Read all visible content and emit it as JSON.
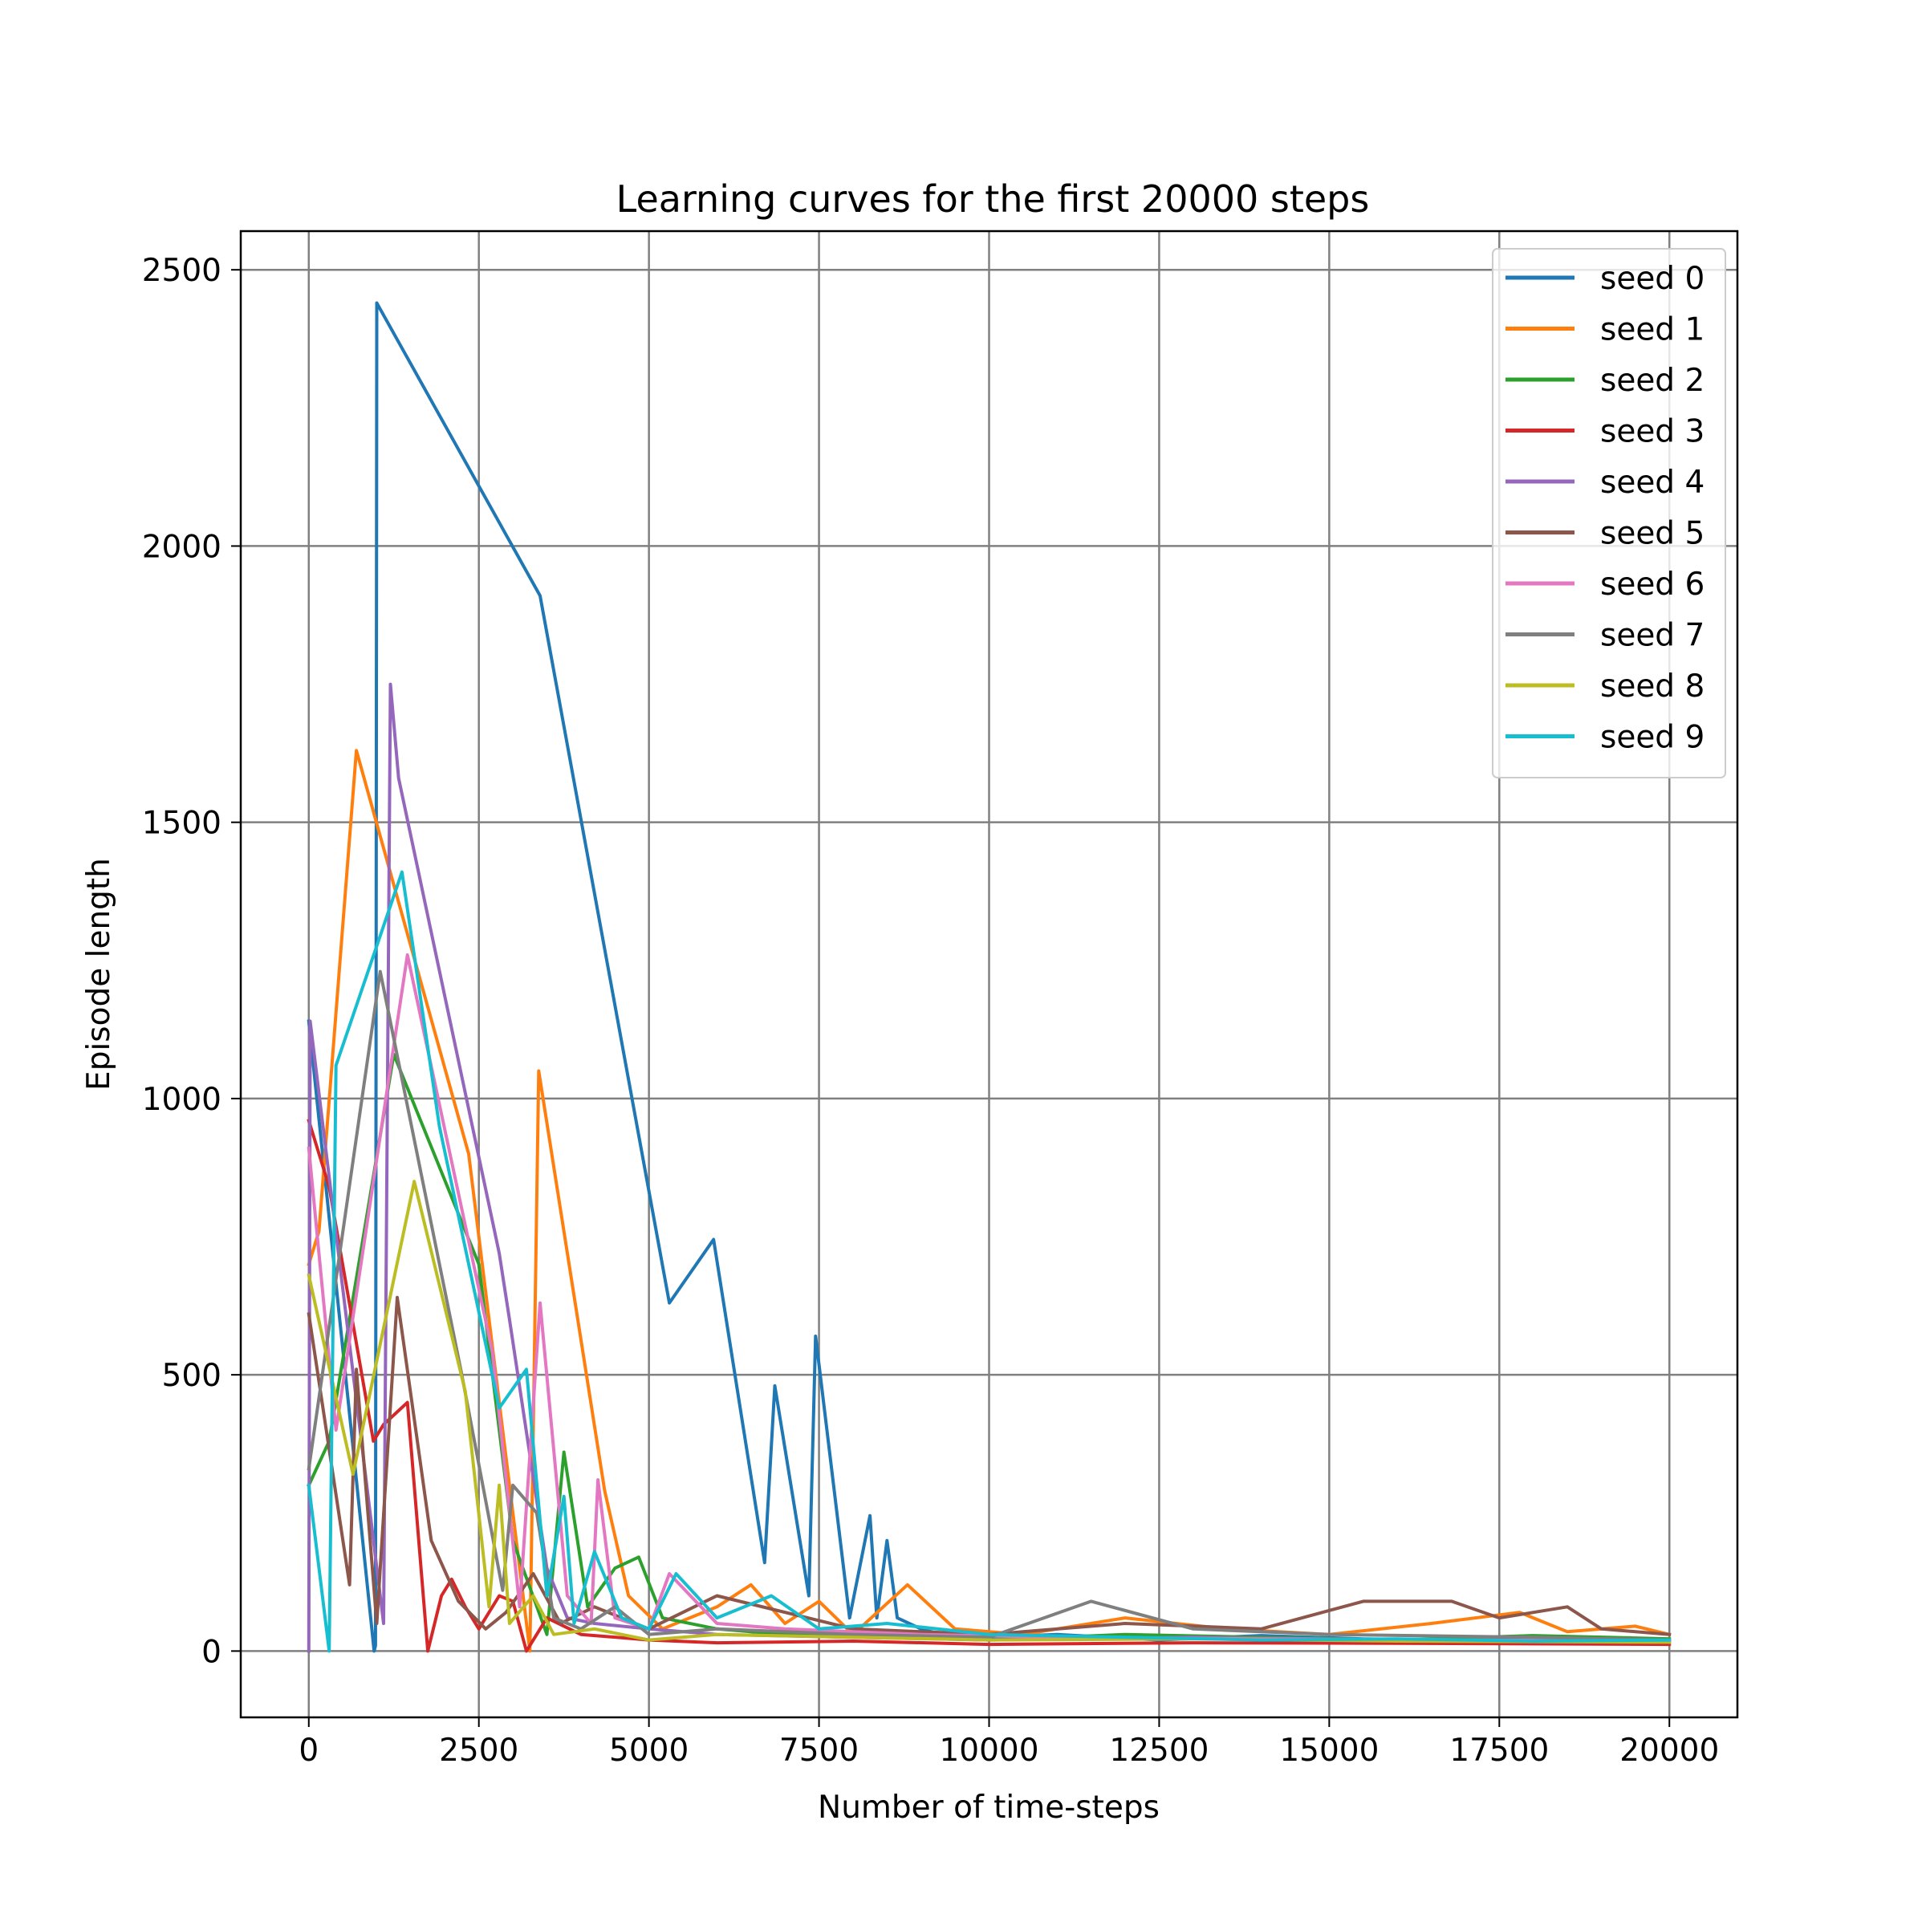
{
  "chart_data": {
    "type": "line",
    "title": "Learning curves for the first 20000 steps",
    "xlabel": "Number of time-steps",
    "ylabel": "Episode length",
    "xlim": [
      -1000,
      21000
    ],
    "ylim": [
      -120,
      2570
    ],
    "xticks": [
      0,
      2500,
      5000,
      7500,
      10000,
      12500,
      15000,
      17500,
      20000
    ],
    "yticks": [
      0,
      500,
      1000,
      1500,
      2000,
      2500
    ],
    "grid": true,
    "legend_position": "top-right",
    "series": [
      {
        "name": "seed 0",
        "color": "#1f77b4",
        "x": [
          0,
          960,
          980,
          1000,
          3400,
          5300,
          5950,
          6700,
          6850,
          7350,
          7450,
          7950,
          8250,
          8350,
          8500,
          8650,
          9000,
          9300,
          10000,
          11000,
          12500,
          14000,
          15500,
          17000,
          18500,
          20000
        ],
        "y": [
          1140,
          0,
          10,
          2440,
          1910,
          630,
          745,
          160,
          480,
          100,
          570,
          60,
          245,
          60,
          200,
          60,
          40,
          30,
          25,
          30,
          20,
          28,
          22,
          20,
          25,
          20
        ]
      },
      {
        "name": "seed 1",
        "color": "#ff7f0e",
        "x": [
          0,
          150,
          700,
          2350,
          3250,
          3380,
          4350,
          4700,
          5200,
          6000,
          6500,
          7000,
          7500,
          8000,
          8800,
          9500,
          10500,
          12000,
          13500,
          15000,
          16500,
          17800,
          18500,
          19500,
          20000
        ],
        "y": [
          700,
          760,
          1630,
          900,
          0,
          1050,
          290,
          100,
          40,
          80,
          120,
          50,
          90,
          30,
          120,
          40,
          30,
          60,
          40,
          30,
          50,
          70,
          35,
          45,
          30
        ]
      },
      {
        "name": "seed 2",
        "color": "#2ca02c",
        "x": [
          0,
          300,
          1250,
          2500,
          3000,
          3500,
          3750,
          4100,
          4500,
          4850,
          5200,
          6000,
          7000,
          8500,
          10000,
          12000,
          14000,
          16000,
          18000,
          20000
        ],
        "y": [
          300,
          380,
          1080,
          700,
          200,
          30,
          360,
          80,
          150,
          170,
          60,
          40,
          30,
          25,
          20,
          30,
          25,
          20,
          28,
          22
        ]
      },
      {
        "name": "seed 3",
        "color": "#d62728",
        "x": [
          0,
          300,
          950,
          1100,
          1450,
          1750,
          1950,
          2100,
          2300,
          2500,
          2800,
          3000,
          3200,
          3500,
          4000,
          5000,
          6000,
          8000,
          10000,
          13000,
          16000,
          20000
        ],
        "y": [
          960,
          840,
          380,
          410,
          450,
          0,
          100,
          130,
          80,
          40,
          100,
          90,
          0,
          60,
          30,
          20,
          15,
          18,
          12,
          15,
          14,
          12
        ]
      },
      {
        "name": "seed 4",
        "color": "#9467bd",
        "x": [
          0,
          20,
          1100,
          1200,
          1320,
          2800,
          2950,
          3500,
          3800,
          4200,
          5000,
          6000,
          8000,
          10000,
          13000,
          16000,
          20000
        ],
        "y": [
          0,
          1140,
          50,
          1750,
          1580,
          720,
          600,
          150,
          60,
          50,
          40,
          30,
          25,
          20,
          25,
          20,
          18
        ]
      },
      {
        "name": "seed 5",
        "color": "#8c564b",
        "x": [
          0,
          600,
          700,
          1000,
          1300,
          1800,
          2200,
          2600,
          2900,
          3300,
          3700,
          4200,
          5000,
          6000,
          8000,
          10000,
          12000,
          14000,
          15500,
          16800,
          17500,
          18500,
          19000,
          20000
        ],
        "y": [
          610,
          120,
          510,
          50,
          640,
          200,
          90,
          40,
          70,
          140,
          50,
          80,
          40,
          100,
          40,
          30,
          50,
          40,
          90,
          90,
          60,
          80,
          40,
          30
        ]
      },
      {
        "name": "seed 6",
        "color": "#e377c2",
        "x": [
          0,
          400,
          1450,
          2700,
          3100,
          3400,
          3800,
          4150,
          4250,
          4500,
          5000,
          5300,
          6000,
          7000,
          9000,
          11000,
          14000,
          17000,
          20000
        ],
        "y": [
          910,
          400,
          1260,
          540,
          80,
          630,
          100,
          50,
          310,
          60,
          40,
          140,
          50,
          40,
          30,
          25,
          22,
          20,
          18
        ]
      },
      {
        "name": "seed 7",
        "color": "#7f7f7f",
        "x": [
          0,
          1050,
          2250,
          2850,
          3000,
          3350,
          3600,
          4000,
          4500,
          5000,
          6000,
          8000,
          10000,
          11500,
          13000,
          15000,
          18000,
          20000
        ],
        "y": [
          330,
          1230,
          500,
          110,
          300,
          250,
          60,
          40,
          80,
          30,
          40,
          30,
          25,
          90,
          40,
          30,
          25,
          20
        ]
      },
      {
        "name": "seed 8",
        "color": "#bcbd22",
        "x": [
          0,
          650,
          1550,
          2300,
          2650,
          2800,
          2950,
          3300,
          3600,
          4200,
          5000,
          6000,
          8000,
          10000,
          13000,
          16000,
          20000
        ],
        "y": [
          680,
          320,
          850,
          470,
          80,
          300,
          50,
          100,
          30,
          40,
          20,
          30,
          25,
          20,
          22,
          18,
          16
        ]
      },
      {
        "name": "seed 9",
        "color": "#17becf",
        "x": [
          0,
          300,
          400,
          1370,
          1920,
          2800,
          3200,
          3500,
          3750,
          3900,
          4200,
          4600,
          5000,
          5400,
          6000,
          6800,
          7500,
          8500,
          10000,
          12000,
          14000,
          16000,
          18000,
          20000
        ],
        "y": [
          300,
          0,
          1060,
          1410,
          950,
          440,
          510,
          100,
          280,
          50,
          180,
          60,
          40,
          140,
          60,
          100,
          40,
          50,
          30,
          25,
          20,
          22,
          18,
          20
        ]
      }
    ]
  }
}
